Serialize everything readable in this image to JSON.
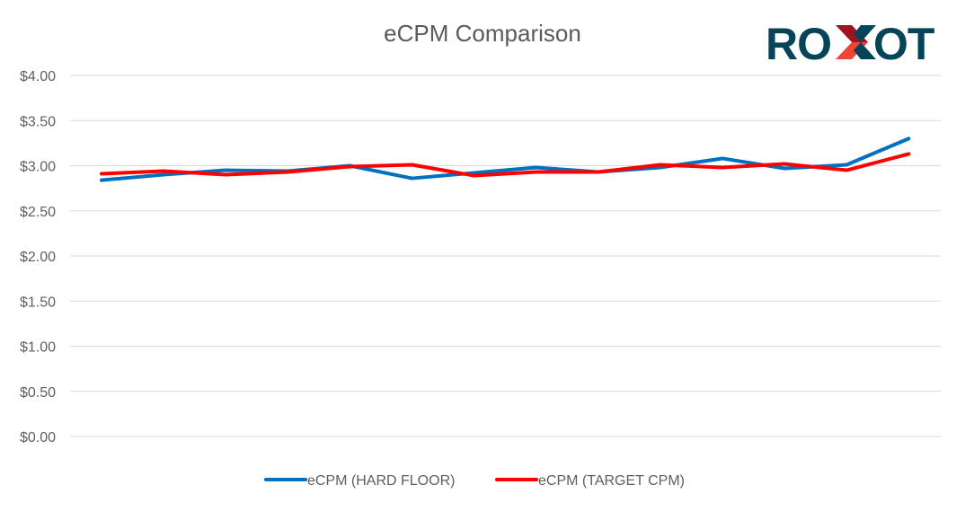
{
  "chart_data": {
    "type": "line",
    "title": "eCPM Comparison",
    "xlabel": "",
    "ylabel": "",
    "ylim": [
      0,
      4
    ],
    "y_ticks": [
      "$0.00",
      "$0.50",
      "$1.00",
      "$1.50",
      "$2.00",
      "$2.50",
      "$3.00",
      "$3.50",
      "$4.00"
    ],
    "grid": true,
    "legend_position": "bottom",
    "x": [
      1,
      2,
      3,
      4,
      5,
      6,
      7,
      8,
      9,
      10,
      11,
      12,
      13,
      14
    ],
    "series": [
      {
        "name": "eCPM (HARD FLOOR)",
        "color": "#0070c0",
        "values": [
          2.84,
          2.9,
          2.95,
          2.94,
          3.0,
          2.86,
          2.92,
          2.98,
          2.93,
          2.98,
          3.08,
          2.97,
          3.01,
          3.3
        ]
      },
      {
        "name": "eCPM (TARGET CPM)",
        "color": "#ff0000",
        "values": [
          2.91,
          2.94,
          2.9,
          2.93,
          2.99,
          3.01,
          2.89,
          2.93,
          2.93,
          3.01,
          2.98,
          3.02,
          2.95,
          3.13
        ]
      }
    ]
  },
  "logo": {
    "text": "ROXOT",
    "color": "#06445a",
    "accent_dark": "#a01422",
    "accent_light": "#f04438"
  }
}
